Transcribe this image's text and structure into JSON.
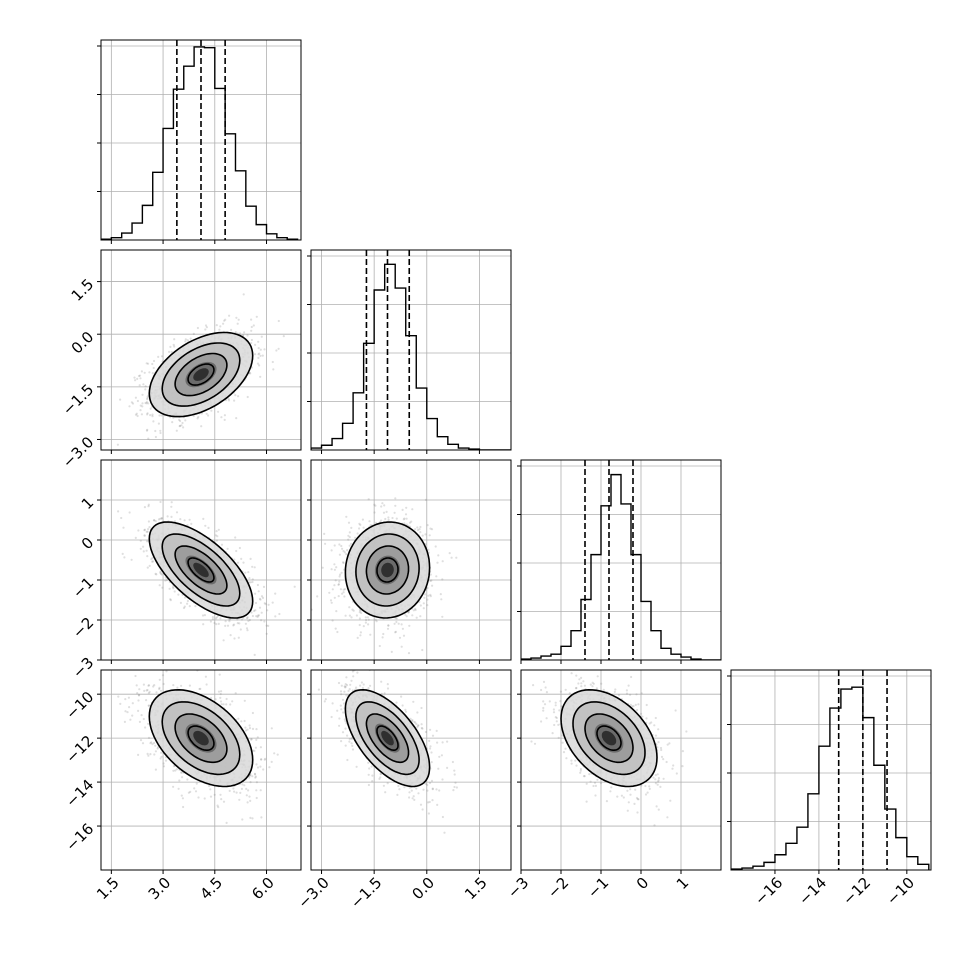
{
  "chart_data": {
    "type": "corner",
    "grid": true,
    "parameters": [
      {
        "ticks": [
          1.5,
          3.0,
          4.5,
          6.0
        ],
        "tick_labels": [
          "1.5",
          "3.0",
          "4.5",
          "6.0"
        ],
        "range": [
          1.2,
          7.0
        ],
        "quantiles": [
          3.4,
          4.1,
          4.8
        ],
        "hist_bins": [
          1.2,
          1.5,
          1.8,
          2.1,
          2.4,
          2.7,
          3.0,
          3.3,
          3.6,
          3.9,
          4.2,
          4.5,
          4.8,
          5.1,
          5.4,
          5.7,
          6.0,
          6.3,
          6.6,
          6.9
        ],
        "hist_heights": [
          1,
          3,
          9,
          22,
          45,
          88,
          145,
          196,
          226,
          251,
          250,
          197,
          138,
          90,
          44,
          20,
          8,
          3,
          1
        ],
        "hist_max": 260
      },
      {
        "ticks": [
          -3.0,
          -1.5,
          0.0,
          1.5
        ],
        "tick_labels": [
          "−3.0",
          "−1.5",
          "0.0",
          "1.5"
        ],
        "range": [
          -3.3,
          2.4
        ],
        "quantiles": [
          -1.72,
          -1.12,
          -0.5
        ],
        "hist_bins": [
          -3.3,
          -3.0,
          -2.7,
          -2.4,
          -2.1,
          -1.8,
          -1.5,
          -1.2,
          -0.9,
          -0.6,
          -0.3,
          0.0,
          0.3,
          0.6,
          0.9,
          1.2,
          1.5,
          1.8,
          2.1,
          2.4
        ],
        "hist_heights": [
          2,
          5,
          12,
          28,
          60,
          112,
          168,
          195,
          170,
          120,
          65,
          33,
          14,
          6,
          2,
          1,
          0,
          0,
          0
        ],
        "hist_max": 210
      },
      {
        "ticks": [
          -3,
          -2,
          -1,
          0,
          1
        ],
        "tick_labels": [
          "−3",
          "−2",
          "−1",
          "0",
          "1"
        ],
        "range": [
          -3.0,
          2.0
        ],
        "quantiles": [
          -1.4,
          -0.8,
          -0.2
        ],
        "hist_bins": [
          -3.0,
          -2.75,
          -2.5,
          -2.25,
          -2.0,
          -1.75,
          -1.5,
          -1.25,
          -1.0,
          -0.75,
          -0.5,
          -0.25,
          0.0,
          0.25,
          0.5,
          0.75,
          1.0,
          1.25,
          1.5,
          1.75,
          2.0
        ],
        "hist_heights": [
          1,
          2,
          4,
          6,
          14,
          30,
          62,
          108,
          158,
          190,
          160,
          108,
          60,
          30,
          12,
          6,
          3,
          1,
          0,
          0
        ],
        "hist_max": 205
      },
      {
        "ticks": [
          -16,
          -14,
          -12,
          -10
        ],
        "tick_labels": [
          "−16",
          "−14",
          "−12",
          "−10"
        ],
        "range": [
          -18.0,
          -8.9
        ],
        "quantiles": [
          -13.1,
          -12.0,
          -10.9
        ],
        "hist_bins": [
          -18.0,
          -17.5,
          -17.0,
          -16.5,
          -16.0,
          -15.5,
          -15.0,
          -14.5,
          -14.0,
          -13.5,
          -13.0,
          -12.5,
          -12.0,
          -11.5,
          -11.0,
          -10.5,
          -10.0,
          -9.5,
          -9.0
        ],
        "hist_heights": [
          1,
          2,
          4,
          8,
          16,
          28,
          45,
          80,
          130,
          170,
          190,
          192,
          160,
          110,
          64,
          34,
          14,
          6
        ],
        "hist_max": 210
      }
    ],
    "pairs": [
      {
        "row": 1,
        "col": 0,
        "mean": [
          4.1,
          -1.15
        ],
        "sd": [
          0.75,
          0.6
        ],
        "corr": 0.45
      },
      {
        "row": 2,
        "col": 0,
        "mean": [
          4.1,
          -0.75
        ],
        "sd": [
          0.75,
          0.6
        ],
        "corr": -0.65
      },
      {
        "row": 2,
        "col": 1,
        "mean": [
          -1.12,
          -0.75
        ],
        "sd": [
          0.6,
          0.6
        ],
        "corr": 0.05
      },
      {
        "row": 3,
        "col": 0,
        "mean": [
          4.1,
          -12.0
        ],
        "sd": [
          0.75,
          1.1
        ],
        "corr": -0.45
      },
      {
        "row": 3,
        "col": 1,
        "mean": [
          -1.12,
          -12.0
        ],
        "sd": [
          0.6,
          1.1
        ],
        "corr": -0.6
      },
      {
        "row": 3,
        "col": 2,
        "mean": [
          -0.8,
          -12.0
        ],
        "sd": [
          0.6,
          1.1
        ],
        "corr": -0.4
      }
    ],
    "contour_levels_sigma": [
      0.5,
      1.0,
      1.5,
      2.0
    ]
  }
}
